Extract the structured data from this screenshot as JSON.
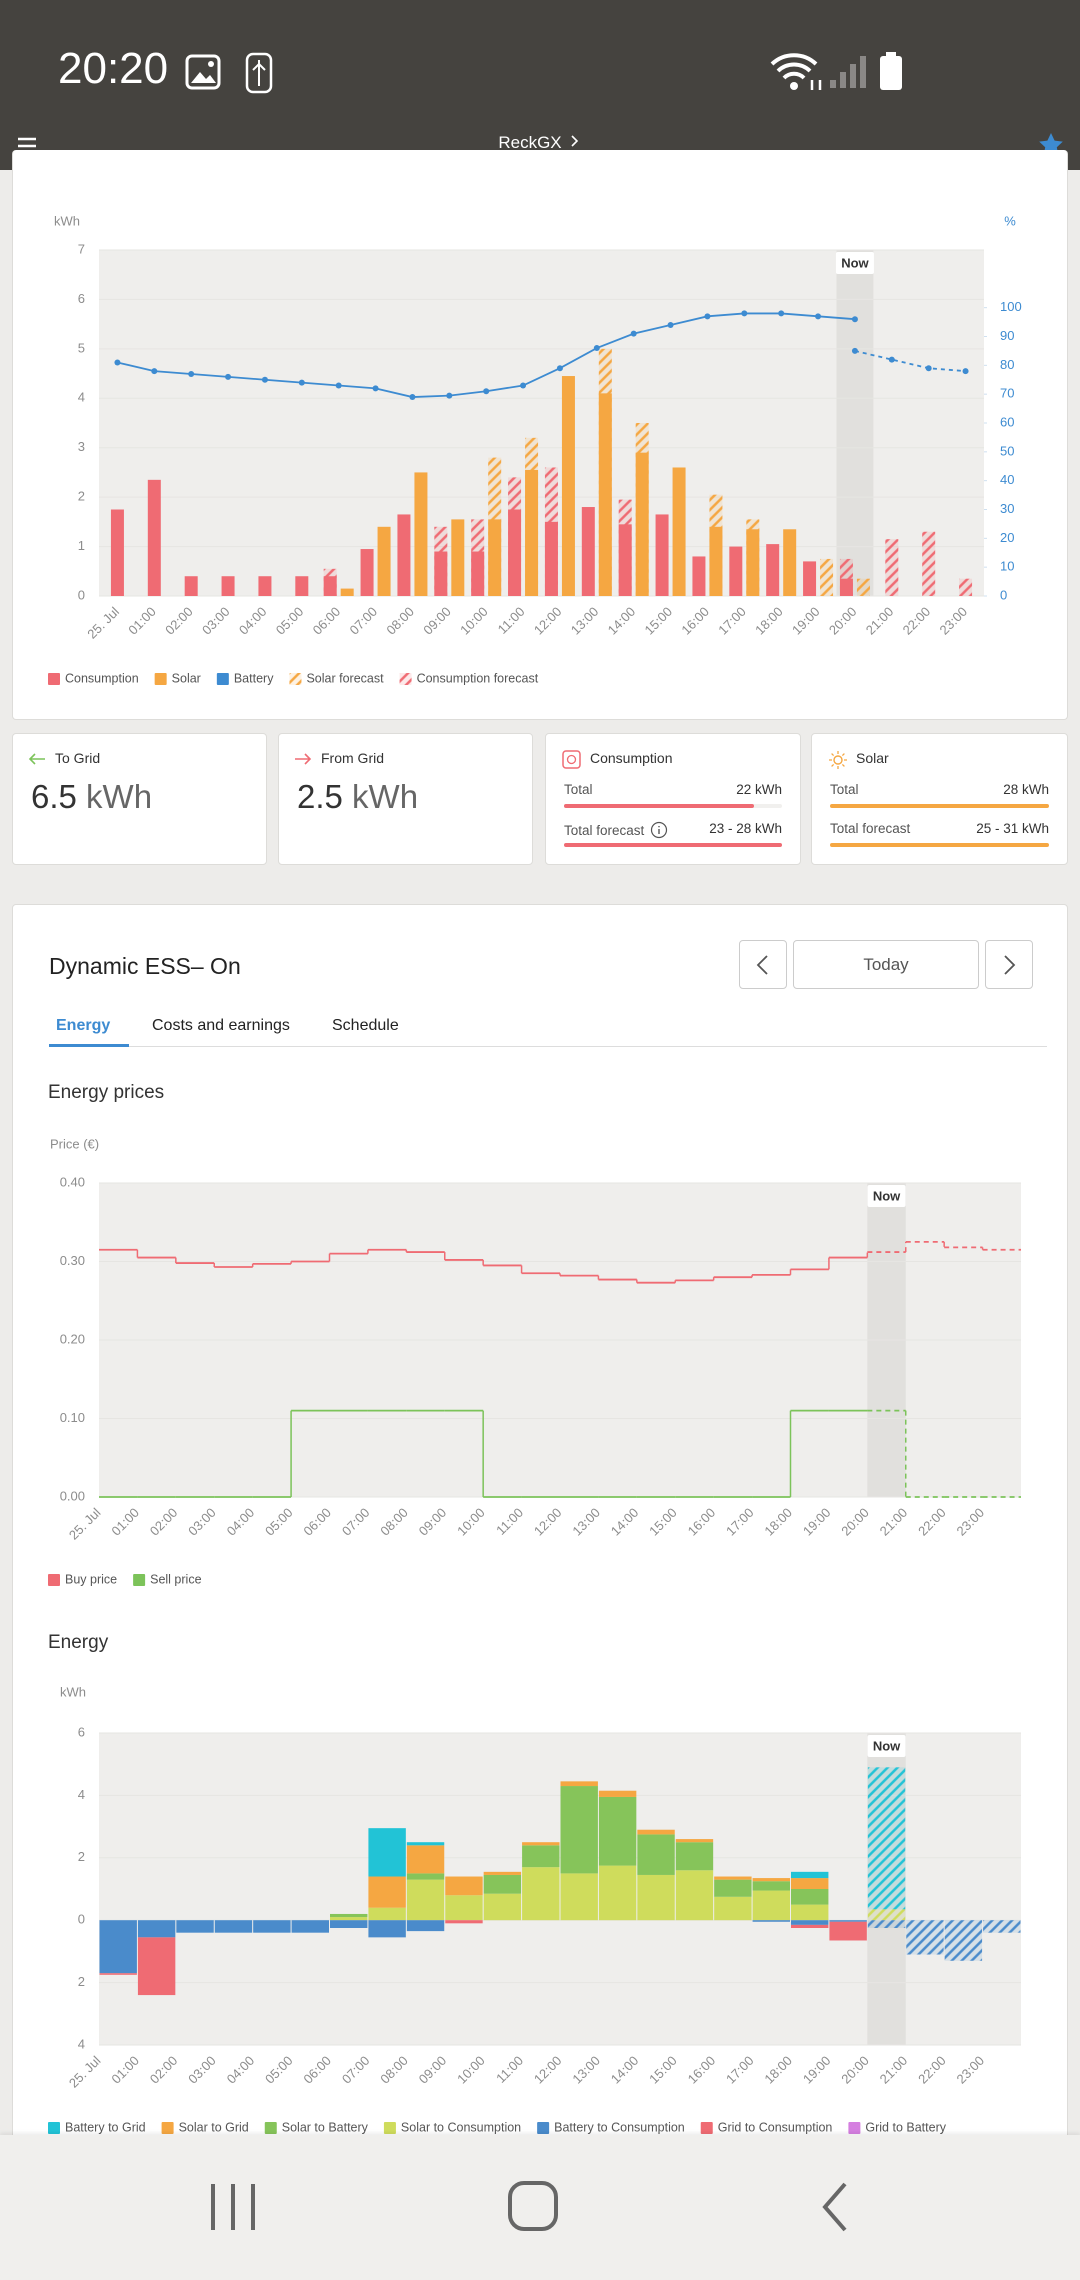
{
  "status_bar": {
    "time": "20:20"
  },
  "header": {
    "title": "ReckGX"
  },
  "stats": [
    {
      "label": "To Grid",
      "value": "6.5",
      "unit": "kWh"
    },
    {
      "label": "From Grid",
      "value": "2.5",
      "unit": "kWh"
    },
    {
      "label": "Consumption",
      "rows": [
        {
          "label": "Total",
          "value": "22 kWh"
        },
        {
          "label": "Total forecast",
          "value": "23 - 28 kWh"
        }
      ]
    },
    {
      "label": "Solar",
      "rows": [
        {
          "label": "Total",
          "value": "28 kWh"
        },
        {
          "label": "Total forecast",
          "value": "25 - 31 kWh"
        }
      ]
    }
  ],
  "ess": {
    "title": "Dynamic ESS– On",
    "date": "Today",
    "tabs": [
      "Energy",
      "Costs and earnings",
      "Schedule"
    ]
  },
  "chart_data": [
    {
      "type": "bar",
      "y_label": "kWh",
      "y2_label": "%",
      "grid": true,
      "categories": [
        "25. Jul",
        "01:00",
        "02:00",
        "03:00",
        "04:00",
        "05:00",
        "06:00",
        "07:00",
        "08:00",
        "09:00",
        "10:00",
        "11:00",
        "12:00",
        "13:00",
        "14:00",
        "15:00",
        "16:00",
        "17:00",
        "18:00",
        "19:00",
        "20:00",
        "21:00",
        "22:00",
        "23:00"
      ],
      "ylim": [
        0,
        7
      ],
      "yticks": [
        0,
        1,
        2,
        3,
        4,
        5,
        6,
        7
      ],
      "y2lim": [
        0,
        120
      ],
      "y2ticks": [
        0,
        10,
        20,
        30,
        40,
        50,
        60,
        70,
        80,
        90,
        100
      ],
      "now": {
        "label": "Now",
        "category": "20:00"
      },
      "series": [
        {
          "name": "Consumption",
          "color": "#ef6b73",
          "kind": "bar",
          "stack": "Consumption",
          "values": [
            1.75,
            2.35,
            0.4,
            0.4,
            0.4,
            0.4,
            0.4,
            0.95,
            1.65,
            0.9,
            0.9,
            1.75,
            1.5,
            1.8,
            1.45,
            1.65,
            0.8,
            1.0,
            1.05,
            0.7,
            0.35,
            null,
            null,
            null
          ]
        },
        {
          "name": "Solar",
          "color": "#f5a742",
          "kind": "bar",
          "stack": "Solar",
          "values": [
            null,
            null,
            null,
            null,
            null,
            null,
            0.15,
            1.4,
            2.5,
            1.55,
            1.55,
            2.55,
            4.45,
            4.1,
            2.9,
            2.6,
            1.4,
            1.35,
            1.35,
            null,
            null,
            null,
            null,
            null
          ]
        },
        {
          "name": "Battery",
          "color": "#3d8bd1",
          "kind": "line",
          "axis": "y2",
          "values": [
            81,
            78,
            77,
            76,
            75,
            74,
            73,
            72,
            69,
            69.5,
            71,
            73,
            79,
            86,
            91,
            94,
            97,
            98,
            98,
            97,
            96,
            null,
            null,
            null
          ]
        },
        {
          "name": "Solar forecast",
          "color": "#f5a742",
          "kind": "bar",
          "stack": "Solar",
          "pattern": "hatch",
          "values": [
            null,
            null,
            null,
            null,
            null,
            null,
            null,
            null,
            null,
            null,
            2.8,
            3.2,
            null,
            5.0,
            3.5,
            null,
            2.05,
            1.55,
            null,
            0.75,
            0.35,
            null,
            null,
            null
          ]
        },
        {
          "name": "Consumption forecast",
          "color": "#ef6b73",
          "kind": "bar",
          "stack": "Consumption",
          "pattern": "hatch",
          "values": [
            null,
            null,
            null,
            null,
            null,
            null,
            0.55,
            null,
            null,
            1.4,
            1.55,
            2.4,
            2.6,
            null,
            1.95,
            null,
            null,
            null,
            null,
            null,
            0.75,
            1.15,
            1.3,
            0.35
          ]
        },
        {
          "color": "#3d8bd1",
          "kind": "line",
          "axis": "y2",
          "dashed": true,
          "values": [
            null,
            null,
            null,
            null,
            null,
            null,
            null,
            null,
            null,
            null,
            null,
            null,
            null,
            null,
            null,
            null,
            null,
            null,
            null,
            null,
            85,
            82,
            79,
            78
          ]
        }
      ]
    },
    {
      "type": "line",
      "step": true,
      "title": "Energy prices",
      "y_label": "Price (€)",
      "grid": true,
      "categories": [
        "25. Jul",
        "01:00",
        "02:00",
        "03:00",
        "04:00",
        "05:00",
        "06:00",
        "07:00",
        "08:00",
        "09:00",
        "10:00",
        "11:00",
        "12:00",
        "13:00",
        "14:00",
        "15:00",
        "16:00",
        "17:00",
        "18:00",
        "19:00",
        "20:00",
        "21:00",
        "22:00",
        "23:00"
      ],
      "ylim": [
        0,
        0.4
      ],
      "yticks": [
        {
          "value": 0,
          "label": "0.00"
        },
        {
          "value": 0.1,
          "label": "0.10"
        },
        {
          "value": 0.2,
          "label": "0.20"
        },
        {
          "value": 0.3,
          "label": "0.30"
        },
        {
          "value": 0.4,
          "label": "0.40"
        }
      ],
      "now": {
        "label": "Now",
        "category": "20:00"
      },
      "series": [
        {
          "name": "Buy price",
          "color": "#ef6b73",
          "values": [
            0.315,
            0.305,
            0.298,
            0.293,
            0.297,
            0.3,
            0.31,
            0.315,
            0.312,
            0.302,
            0.295,
            0.285,
            0.282,
            0.277,
            0.273,
            0.276,
            0.28,
            0.283,
            0.29,
            0.305,
            0.312,
            0.325,
            0.318,
            0.315
          ]
        },
        {
          "name": "Sell price",
          "color": "#7cc35a",
          "values": [
            0,
            0,
            0,
            0,
            0,
            0.11,
            0.11,
            0.11,
            0.11,
            0.11,
            0,
            0,
            0,
            0,
            0,
            0,
            0,
            0,
            0.11,
            0.11,
            0.11,
            0,
            0,
            0
          ]
        }
      ]
    },
    {
      "type": "bar",
      "stacked": true,
      "title": "Energy",
      "y_label": "kWh",
      "grid": true,
      "categories": [
        "25. Jul",
        "01:00",
        "02:00",
        "03:00",
        "04:00",
        "05:00",
        "06:00",
        "07:00",
        "08:00",
        "09:00",
        "10:00",
        "11:00",
        "12:00",
        "13:00",
        "14:00",
        "15:00",
        "16:00",
        "17:00",
        "18:00",
        "19:00",
        "20:00",
        "21:00",
        "22:00",
        "23:00"
      ],
      "ylim": [
        -4,
        6
      ],
      "yticks": [
        {
          "value": -4,
          "label": "4"
        },
        {
          "value": -2,
          "label": "2"
        },
        0,
        2,
        4,
        6
      ],
      "now": {
        "label": "Now",
        "category": "20:00"
      },
      "series": [
        {
          "name": "Battery to Grid",
          "color": "#22c3d6",
          "values": [
            0,
            0,
            0,
            0,
            0,
            0,
            0,
            1.55,
            0.1,
            0,
            0,
            0,
            0,
            0,
            0,
            0,
            0,
            0,
            0.2,
            0,
            4.55,
            0,
            0,
            0
          ]
        },
        {
          "name": "Solar to Grid",
          "color": "#f5a742",
          "values": [
            0,
            0,
            0,
            0,
            0,
            0,
            0,
            1.0,
            0.9,
            0.6,
            0.1,
            0.1,
            0.15,
            0.2,
            0.15,
            0.1,
            0.1,
            0.1,
            0.35,
            0,
            0,
            0,
            0,
            0
          ]
        },
        {
          "name": "Solar to Battery",
          "color": "#86c45a",
          "values": [
            0,
            0,
            0,
            0,
            0,
            0,
            0.1,
            0,
            0.2,
            0,
            0.6,
            0.7,
            2.8,
            2.2,
            1.3,
            0.9,
            0.55,
            0.3,
            0.5,
            0,
            0,
            0,
            0,
            0
          ]
        },
        {
          "name": "Solar to Consumption",
          "color": "#cfdc5c",
          "values": [
            0,
            0,
            0,
            0,
            0,
            0,
            0.1,
            0.4,
            1.3,
            0.8,
            0.85,
            1.7,
            1.5,
            1.75,
            1.45,
            1.6,
            0.75,
            0.95,
            0.5,
            0,
            0.35,
            0,
            0,
            0
          ]
        },
        {
          "name": "Battery to Consumption",
          "color": "#4a8bcb",
          "values": [
            -1.7,
            -0.55,
            -0.4,
            -0.4,
            -0.4,
            -0.4,
            -0.25,
            -0.55,
            -0.35,
            0,
            0,
            0,
            0,
            0,
            0,
            0,
            0,
            -0.05,
            -0.15,
            -0.05,
            -0.25,
            -1.1,
            -1.3,
            -0.4
          ]
        },
        {
          "name": "Grid to Consumption",
          "color": "#ef6b73",
          "values": [
            -0.05,
            -1.85,
            0,
            0,
            0,
            0,
            0,
            0,
            0,
            -0.1,
            0,
            0,
            0,
            0,
            0,
            0,
            0,
            0,
            -0.1,
            -0.6,
            0,
            0,
            0,
            0
          ]
        },
        {
          "name": "Grid to Battery",
          "color": "#d57fe0",
          "values": [
            0,
            0,
            0,
            0,
            0,
            0,
            0,
            0,
            0,
            0,
            0,
            0,
            0,
            0,
            0,
            0,
            0,
            0,
            0,
            0,
            0,
            0,
            0,
            0
          ]
        }
      ]
    }
  ]
}
